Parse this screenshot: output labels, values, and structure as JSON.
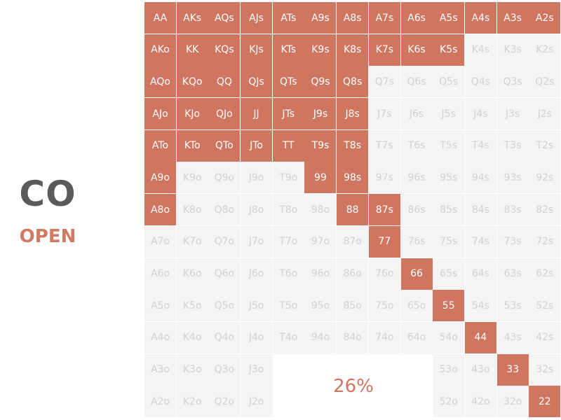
{
  "position": "CO",
  "action": "OPEN",
  "range_percent": "26%",
  "colors": {
    "in_range": "#cf7560",
    "out_of_range": "#f4f4f4",
    "position_text": "#5a5a5a"
  },
  "ranks": [
    "A",
    "K",
    "Q",
    "J",
    "T",
    "9",
    "8",
    "7",
    "6",
    "5",
    "4",
    "3",
    "2"
  ],
  "opened": [
    "AA",
    "AKs",
    "AQs",
    "AJs",
    "ATs",
    "A9s",
    "A8s",
    "A7s",
    "A6s",
    "A5s",
    "A4s",
    "A3s",
    "A2s",
    "AKo",
    "KK",
    "KQs",
    "KJs",
    "KTs",
    "K9s",
    "K8s",
    "K7s",
    "K6s",
    "K5s",
    "AQo",
    "KQo",
    "QQ",
    "QJs",
    "QTs",
    "Q9s",
    "Q8s",
    "AJo",
    "KJo",
    "QJo",
    "JJ",
    "JTs",
    "J9s",
    "J8s",
    "ATo",
    "KTo",
    "QTo",
    "JTo",
    "TT",
    "T9s",
    "T8s",
    "A9o",
    "99",
    "98s",
    "A8o",
    "88",
    "87s",
    "77",
    "66",
    "55",
    "44",
    "33",
    "22"
  ]
}
